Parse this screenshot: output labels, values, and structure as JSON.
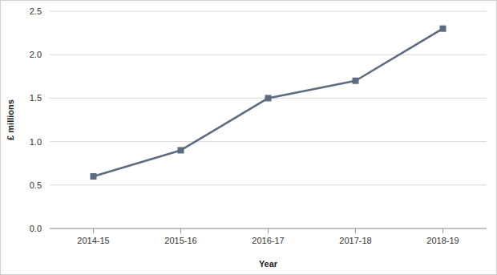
{
  "chart_data": {
    "type": "line",
    "x_label": "Year",
    "y_label": "£ millions",
    "categories": [
      "2014-15",
      "2015-16",
      "2016-17",
      "2017-18",
      "2018-19"
    ],
    "values": [
      0.6,
      0.9,
      1.5,
      1.7,
      2.3
    ],
    "color": "#5b6b80",
    "marker": "square",
    "ylim": [
      0,
      2.5
    ],
    "yticks": [
      {
        "value": 0,
        "label": "0.0"
      },
      0.5,
      {
        "value": 1,
        "label": "1.0"
      },
      1.5,
      {
        "value": 2,
        "label": "2.0"
      },
      2.5
    ],
    "grid": true
  }
}
